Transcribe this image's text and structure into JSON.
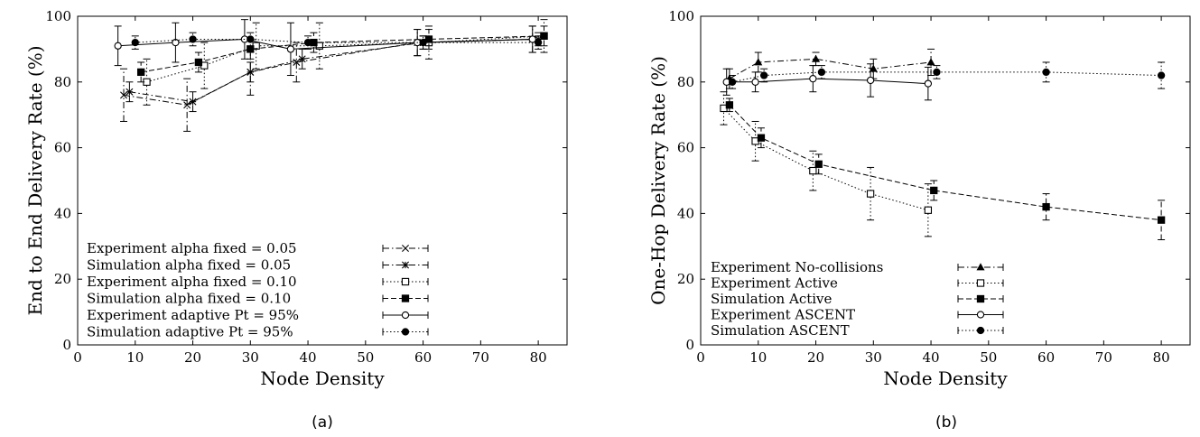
{
  "charts": [
    {
      "caption": "(a)",
      "chart_data": {
        "type": "line",
        "title": "",
        "xlabel": "Node Density",
        "ylabel": "End to End Delivery Rate (%)",
        "xlim": [
          0,
          85
        ],
        "ylim": [
          0,
          100
        ],
        "xticks": [
          0,
          10,
          20,
          30,
          40,
          50,
          60,
          70,
          80
        ],
        "yticks": [
          0,
          20,
          40,
          60,
          80,
          100
        ],
        "legend_position": "bottom-left",
        "grid": false,
        "series": [
          {
            "name": "Experiment alpha fixed = 0.05",
            "style": "dashdot",
            "marker": "x",
            "points": [
              {
                "x": 8,
                "y": 76,
                "err": 8
              },
              {
                "x": 19,
                "y": 73,
                "err": 8
              },
              {
                "x": 30,
                "y": 83,
                "err": 7
              },
              {
                "x": 38,
                "y": 86,
                "err": 6
              },
              {
                "x": 59,
                "y": 92,
                "err": 4
              },
              {
                "x": 79,
                "y": 93,
                "err": 4
              }
            ]
          },
          {
            "name": "Simulation alpha fixed = 0.05",
            "style": "dashdot",
            "marker": "asterisk",
            "points": [
              {
                "x": 9,
                "y": 77,
                "err": 3
              },
              {
                "x": 20,
                "y": 74,
                "err": 3
              },
              {
                "x": 30,
                "y": 83,
                "err": 3
              },
              {
                "x": 39,
                "y": 87,
                "err": 3
              },
              {
                "x": 60,
                "y": 92,
                "err": 2
              },
              {
                "x": 80,
                "y": 93,
                "err": 2
              }
            ]
          },
          {
            "name": "Experiment alpha fixed = 0.10",
            "style": "dotted",
            "marker": "square-open",
            "points": [
              {
                "x": 12,
                "y": 80,
                "err": 7
              },
              {
                "x": 22,
                "y": 85,
                "err": 7
              },
              {
                "x": 31,
                "y": 91,
                "err": 7
              },
              {
                "x": 42,
                "y": 91,
                "err": 7
              },
              {
                "x": 61,
                "y": 92,
                "err": 5
              },
              {
                "x": 81,
                "y": 94,
                "err": 5
              }
            ]
          },
          {
            "name": "Simulation alpha fixed = 0.10",
            "style": "dashed",
            "marker": "square-filled",
            "points": [
              {
                "x": 11,
                "y": 83,
                "err": 3
              },
              {
                "x": 21,
                "y": 86,
                "err": 3
              },
              {
                "x": 30,
                "y": 90,
                "err": 3
              },
              {
                "x": 41,
                "y": 92,
                "err": 3
              },
              {
                "x": 61,
                "y": 93,
                "err": 3
              },
              {
                "x": 81,
                "y": 94,
                "err": 3
              }
            ]
          },
          {
            "name": "Experiment adaptive Pt = 95%",
            "style": "solid",
            "marker": "circle-open",
            "points": [
              {
                "x": 7,
                "y": 91,
                "err": 6
              },
              {
                "x": 17,
                "y": 92,
                "err": 6
              },
              {
                "x": 29,
                "y": 93,
                "err": 6
              },
              {
                "x": 37,
                "y": 90,
                "err": 8
              },
              {
                "x": 59,
                "y": 92,
                "err": 4
              },
              {
                "x": 79,
                "y": 93,
                "err": 4
              }
            ]
          },
          {
            "name": "Simulation adaptive Pt = 95%",
            "style": "dotted",
            "marker": "circle-filled",
            "points": [
              {
                "x": 10,
                "y": 92,
                "err": 2
              },
              {
                "x": 20,
                "y": 93,
                "err": 2
              },
              {
                "x": 30,
                "y": 93,
                "err": 2
              },
              {
                "x": 40,
                "y": 92,
                "err": 2
              },
              {
                "x": 60,
                "y": 92,
                "err": 2
              },
              {
                "x": 80,
                "y": 92,
                "err": 2
              }
            ]
          }
        ]
      }
    },
    {
      "caption": "(b)",
      "chart_data": {
        "type": "line",
        "title": "",
        "xlabel": "Node Density",
        "ylabel": "One-Hop Delivery Rate (%)",
        "xlim": [
          0,
          85
        ],
        "ylim": [
          0,
          100
        ],
        "xticks": [
          0,
          10,
          20,
          30,
          40,
          50,
          60,
          70,
          80
        ],
        "yticks": [
          0,
          20,
          40,
          60,
          80,
          100
        ],
        "legend_position": "bottom-left",
        "grid": false,
        "series": [
          {
            "name": "Experiment No-collisions",
            "style": "dashdot",
            "marker": "triangle-filled",
            "points": [
              {
                "x": 5,
                "y": 81,
                "err": 3
              },
              {
                "x": 10,
                "y": 86,
                "err": 3
              },
              {
                "x": 20,
                "y": 87,
                "err": 2
              },
              {
                "x": 30,
                "y": 84,
                "err": 3
              },
              {
                "x": 40,
                "y": 86,
                "err": 4
              }
            ]
          },
          {
            "name": "Experiment Active",
            "style": "dotted",
            "marker": "square-open",
            "points": [
              {
                "x": 4,
                "y": 72,
                "err": 5
              },
              {
                "x": 9.5,
                "y": 62,
                "err": 6
              },
              {
                "x": 19.5,
                "y": 53,
                "err": 6
              },
              {
                "x": 29.5,
                "y": 46,
                "err": 8
              },
              {
                "x": 39.5,
                "y": 41,
                "err": 8
              }
            ]
          },
          {
            "name": "Simulation Active",
            "style": "dashed",
            "marker": "square-filled",
            "points": [
              {
                "x": 5,
                "y": 73,
                "err": 2
              },
              {
                "x": 10.5,
                "y": 63,
                "err": 3
              },
              {
                "x": 20.5,
                "y": 55,
                "err": 3
              },
              {
                "x": 40.5,
                "y": 47,
                "err": 3
              },
              {
                "x": 60,
                "y": 42,
                "err": 4
              },
              {
                "x": 80,
                "y": 38,
                "err": 6
              }
            ]
          },
          {
            "name": "Experiment ASCENT",
            "style": "solid",
            "marker": "circle-open",
            "points": [
              {
                "x": 4.5,
                "y": 80,
                "err": 4
              },
              {
                "x": 9.5,
                "y": 80,
                "err": 3
              },
              {
                "x": 19.5,
                "y": 81,
                "err": 4
              },
              {
                "x": 29.5,
                "y": 80.5,
                "err": 5
              },
              {
                "x": 39.5,
                "y": 79.5,
                "err": 5
              }
            ]
          },
          {
            "name": "Simulation ASCENT",
            "style": "dotted",
            "marker": "circle-filled",
            "points": [
              {
                "x": 5.5,
                "y": 80,
                "err": 2
              },
              {
                "x": 11,
                "y": 82,
                "err": 2
              },
              {
                "x": 21,
                "y": 83,
                "err": 2
              },
              {
                "x": 41,
                "y": 83,
                "err": 2
              },
              {
                "x": 60,
                "y": 83,
                "err": 3
              },
              {
                "x": 80,
                "y": 82,
                "err": 4
              }
            ]
          }
        ]
      }
    }
  ]
}
